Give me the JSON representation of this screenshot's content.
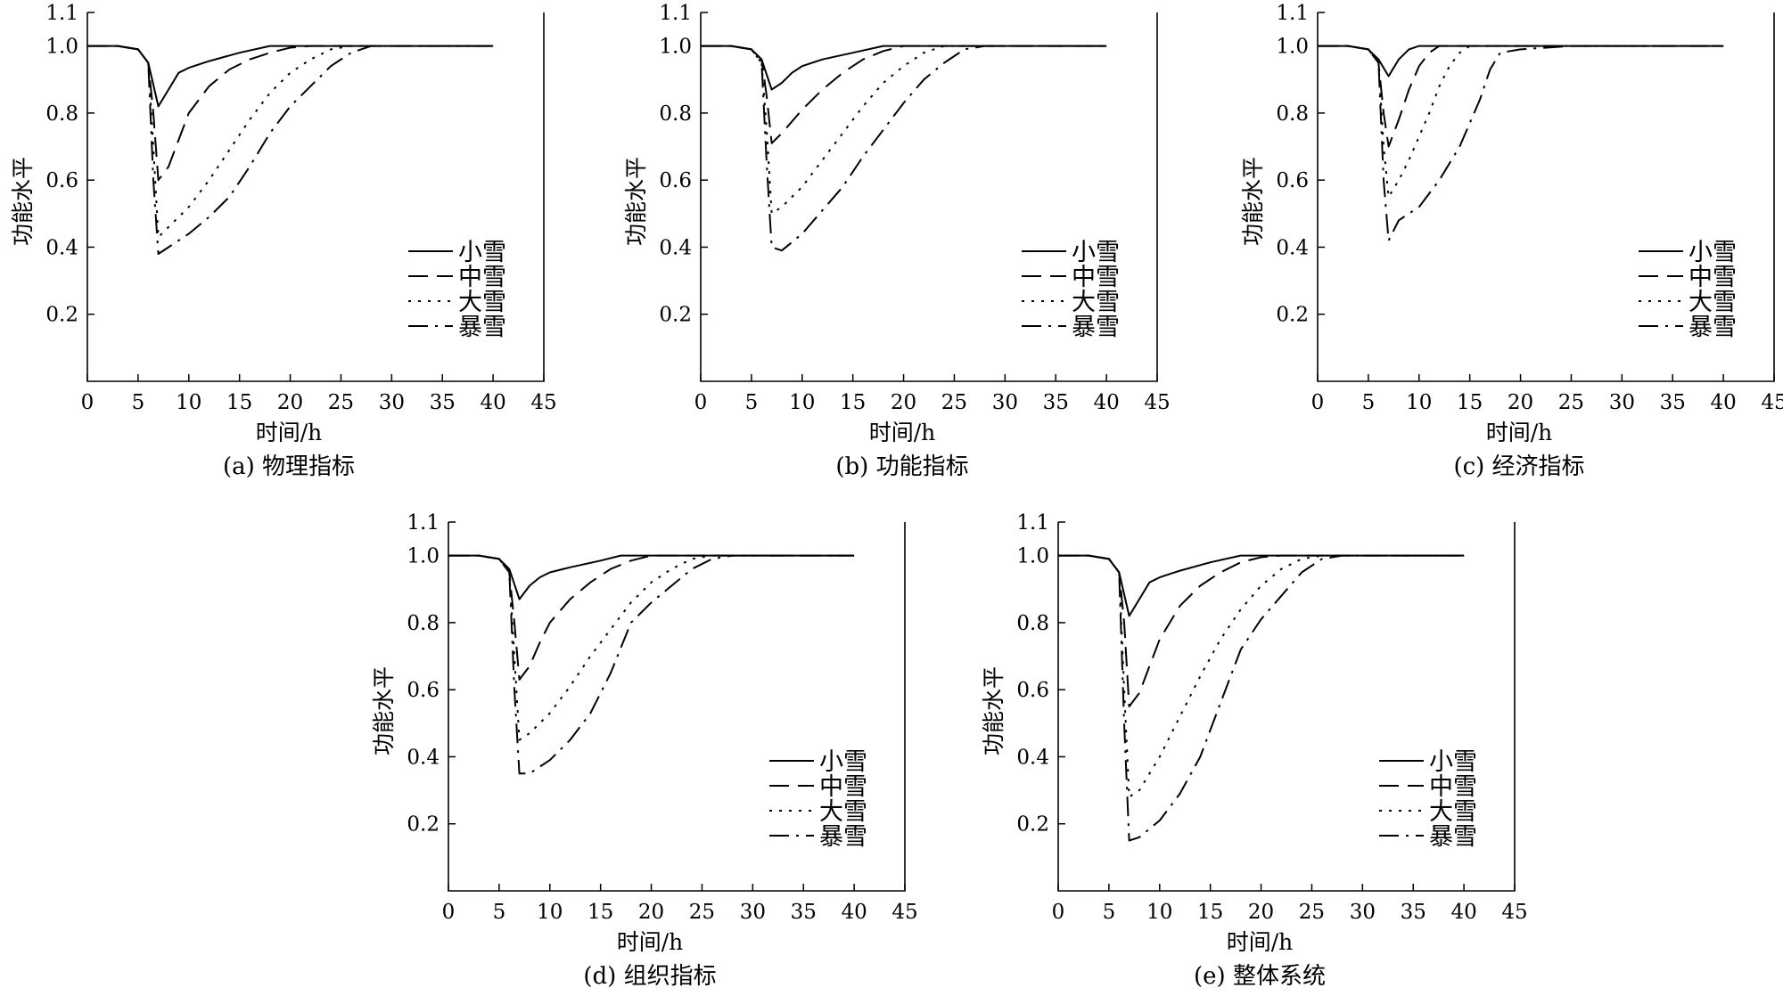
{
  "figure": {
    "x_ticks": [
      "0",
      "5",
      "10",
      "15",
      "20",
      "25",
      "30",
      "35",
      "40",
      "45"
    ],
    "y_ticks": [
      "0.2",
      "0.4",
      "0.6",
      "0.8",
      "1.0",
      "1.1"
    ],
    "legend_labels": [
      "小雪",
      "中雪",
      "大雪",
      "暴雪"
    ],
    "xlabel": "时间/h",
    "ylabel": "功能水平"
  },
  "chart_data": [
    {
      "type": "line",
      "caption": "(a) 物理指标",
      "xlabel": "时间/h",
      "ylabel": "功能水平",
      "xlim": [
        0,
        45
      ],
      "ylim": [
        0,
        1.1
      ],
      "legend_position": "center-right",
      "series": [
        {
          "name": "小雪",
          "x": [
            0,
            3,
            5,
            6,
            7,
            8,
            9,
            10,
            12,
            15,
            18,
            20,
            25,
            30,
            35,
            40
          ],
          "y": [
            1.0,
            1.0,
            0.99,
            0.95,
            0.82,
            0.87,
            0.92,
            0.935,
            0.955,
            0.98,
            1.0,
            1.0,
            1.0,
            1.0,
            1.0,
            1.0
          ]
        },
        {
          "name": "中雪",
          "x": [
            0,
            3,
            5,
            6,
            6.5,
            7,
            8,
            9,
            10,
            12,
            14,
            16,
            18,
            20,
            22,
            25,
            30,
            35,
            40
          ],
          "y": [
            1.0,
            1.0,
            0.99,
            0.95,
            0.8,
            0.6,
            0.64,
            0.72,
            0.8,
            0.88,
            0.93,
            0.96,
            0.98,
            0.995,
            1.0,
            1.0,
            1.0,
            1.0,
            1.0
          ]
        },
        {
          "name": "大雪",
          "x": [
            0,
            3,
            5,
            6,
            6.5,
            7,
            8,
            10,
            12,
            14,
            16,
            18,
            20,
            22,
            24,
            26,
            30,
            35,
            40
          ],
          "y": [
            1.0,
            1.0,
            0.99,
            0.95,
            0.7,
            0.43,
            0.46,
            0.52,
            0.6,
            0.69,
            0.78,
            0.86,
            0.92,
            0.96,
            0.99,
            1.0,
            1.0,
            1.0,
            1.0
          ]
        },
        {
          "name": "暴雪",
          "x": [
            0,
            3,
            5,
            6,
            6.5,
            7,
            8,
            10,
            12,
            14,
            16,
            18,
            20,
            22,
            24,
            26,
            28,
            30,
            35,
            40
          ],
          "y": [
            1.0,
            1.0,
            0.99,
            0.95,
            0.6,
            0.38,
            0.4,
            0.44,
            0.49,
            0.55,
            0.64,
            0.74,
            0.82,
            0.88,
            0.94,
            0.98,
            1.0,
            1.0,
            1.0,
            1.0
          ]
        }
      ]
    },
    {
      "type": "line",
      "caption": "(b) 功能指标",
      "xlabel": "时间/h",
      "ylabel": "功能水平",
      "xlim": [
        0,
        45
      ],
      "ylim": [
        0,
        1.1
      ],
      "legend_position": "center-right",
      "series": [
        {
          "name": "小雪",
          "x": [
            0,
            3,
            5,
            6,
            7,
            8,
            9,
            10,
            12,
            15,
            18,
            20,
            25,
            30,
            35,
            40
          ],
          "y": [
            1.0,
            1.0,
            0.99,
            0.96,
            0.87,
            0.89,
            0.92,
            0.94,
            0.96,
            0.98,
            1.0,
            1.0,
            1.0,
            1.0,
            1.0,
            1.0
          ]
        },
        {
          "name": "中雪",
          "x": [
            0,
            3,
            5,
            6,
            6.5,
            7,
            8,
            10,
            12,
            14,
            16,
            18,
            20,
            22,
            25,
            30,
            35,
            40
          ],
          "y": [
            1.0,
            1.0,
            0.99,
            0.96,
            0.85,
            0.71,
            0.74,
            0.81,
            0.87,
            0.92,
            0.96,
            0.985,
            1.0,
            1.0,
            1.0,
            1.0,
            1.0,
            1.0
          ]
        },
        {
          "name": "大雪",
          "x": [
            0,
            3,
            5,
            6,
            6.5,
            7,
            8,
            10,
            12,
            14,
            16,
            18,
            20,
            22,
            24,
            26,
            30,
            35,
            40
          ],
          "y": [
            1.0,
            1.0,
            0.99,
            0.95,
            0.75,
            0.5,
            0.52,
            0.58,
            0.66,
            0.74,
            0.82,
            0.89,
            0.94,
            0.98,
            1.0,
            1.0,
            1.0,
            1.0,
            1.0
          ]
        },
        {
          "name": "暴雪",
          "x": [
            0,
            3,
            5,
            6,
            6.5,
            7,
            8,
            10,
            12,
            14,
            16,
            18,
            20,
            22,
            24,
            26,
            28,
            30,
            35,
            40
          ],
          "y": [
            1.0,
            1.0,
            0.99,
            0.95,
            0.65,
            0.4,
            0.39,
            0.44,
            0.51,
            0.58,
            0.67,
            0.75,
            0.83,
            0.9,
            0.95,
            0.99,
            1.0,
            1.0,
            1.0,
            1.0
          ]
        }
      ]
    },
    {
      "type": "line",
      "caption": "(c) 经济指标",
      "xlabel": "时间/h",
      "ylabel": "功能水平",
      "xlim": [
        0,
        45
      ],
      "ylim": [
        0,
        1.1
      ],
      "legend_position": "center-right",
      "series": [
        {
          "name": "小雪",
          "x": [
            0,
            3,
            5,
            6,
            7,
            8,
            9,
            10,
            12,
            15,
            20,
            25,
            30,
            35,
            40
          ],
          "y": [
            1.0,
            1.0,
            0.99,
            0.96,
            0.91,
            0.96,
            0.99,
            1.0,
            1.0,
            1.0,
            1.0,
            1.0,
            1.0,
            1.0,
            1.0
          ]
        },
        {
          "name": "中雪",
          "x": [
            0,
            3,
            5,
            6,
            6.5,
            7,
            8,
            9,
            10,
            11,
            12,
            15,
            20,
            25,
            30,
            35,
            40
          ],
          "y": [
            1.0,
            1.0,
            0.99,
            0.95,
            0.8,
            0.7,
            0.78,
            0.87,
            0.94,
            0.98,
            1.0,
            1.0,
            1.0,
            1.0,
            1.0,
            1.0,
            1.0
          ]
        },
        {
          "name": "大雪",
          "x": [
            0,
            3,
            5,
            6,
            6.5,
            7,
            8,
            9,
            10,
            11,
            12,
            13,
            14,
            15,
            20,
            25,
            30,
            35,
            40
          ],
          "y": [
            1.0,
            1.0,
            0.99,
            0.95,
            0.7,
            0.55,
            0.6,
            0.66,
            0.73,
            0.8,
            0.88,
            0.94,
            0.98,
            1.0,
            1.0,
            1.0,
            1.0,
            1.0,
            1.0
          ]
        },
        {
          "name": "暴雪",
          "x": [
            0,
            3,
            5,
            6,
            6.5,
            7,
            8,
            10,
            12,
            14,
            16,
            17,
            18,
            20,
            25,
            27,
            30,
            35,
            40
          ],
          "y": [
            1.0,
            1.0,
            0.99,
            0.95,
            0.6,
            0.42,
            0.48,
            0.52,
            0.6,
            0.7,
            0.84,
            0.93,
            0.98,
            0.99,
            1.0,
            1.0,
            1.0,
            1.0,
            1.0
          ]
        }
      ]
    },
    {
      "type": "line",
      "caption": "(d) 组织指标",
      "xlabel": "时间/h",
      "ylabel": "功能水平",
      "xlim": [
        0,
        45
      ],
      "ylim": [
        0,
        1.1
      ],
      "legend_position": "center-right",
      "series": [
        {
          "name": "小雪",
          "x": [
            0,
            3,
            5,
            6,
            7,
            8,
            9,
            10,
            12,
            15,
            17,
            20,
            25,
            30,
            35,
            40
          ],
          "y": [
            1.0,
            1.0,
            0.99,
            0.96,
            0.87,
            0.91,
            0.935,
            0.95,
            0.965,
            0.985,
            1.0,
            1.0,
            1.0,
            1.0,
            1.0,
            1.0
          ]
        },
        {
          "name": "中雪",
          "x": [
            0,
            3,
            5,
            6,
            6.5,
            7,
            8,
            9,
            10,
            12,
            14,
            16,
            18,
            20,
            22,
            25,
            30,
            35,
            40
          ],
          "y": [
            1.0,
            1.0,
            0.99,
            0.95,
            0.8,
            0.63,
            0.67,
            0.74,
            0.8,
            0.87,
            0.92,
            0.96,
            0.985,
            1.0,
            1.0,
            1.0,
            1.0,
            1.0,
            1.0
          ]
        },
        {
          "name": "大雪",
          "x": [
            0,
            3,
            5,
            6,
            6.5,
            7,
            8,
            10,
            12,
            14,
            16,
            18,
            20,
            22,
            24,
            26,
            30,
            35,
            40
          ],
          "y": [
            1.0,
            1.0,
            0.99,
            0.95,
            0.7,
            0.45,
            0.47,
            0.53,
            0.61,
            0.7,
            0.78,
            0.86,
            0.92,
            0.96,
            0.99,
            1.0,
            1.0,
            1.0,
            1.0
          ]
        },
        {
          "name": "暴雪",
          "x": [
            0,
            3,
            5,
            6,
            6.5,
            7,
            8,
            10,
            12,
            14,
            16,
            18,
            20,
            22,
            24,
            26,
            28,
            30,
            35,
            40
          ],
          "y": [
            1.0,
            1.0,
            0.99,
            0.95,
            0.6,
            0.35,
            0.35,
            0.39,
            0.45,
            0.53,
            0.65,
            0.8,
            0.86,
            0.91,
            0.96,
            0.99,
            1.0,
            1.0,
            1.0,
            1.0
          ]
        }
      ]
    },
    {
      "type": "line",
      "caption": "(e) 整体系统",
      "xlabel": "时间/h",
      "ylabel": "功能水平",
      "xlim": [
        0,
        45
      ],
      "ylim": [
        0,
        1.1
      ],
      "legend_position": "center-right",
      "series": [
        {
          "name": "小雪",
          "x": [
            0,
            3,
            5,
            6,
            7,
            8,
            9,
            10,
            12,
            15,
            18,
            20,
            25,
            30,
            35,
            40
          ],
          "y": [
            1.0,
            1.0,
            0.99,
            0.95,
            0.82,
            0.87,
            0.92,
            0.935,
            0.955,
            0.98,
            1.0,
            1.0,
            1.0,
            1.0,
            1.0,
            1.0
          ]
        },
        {
          "name": "中雪",
          "x": [
            0,
            3,
            5,
            6,
            6.5,
            7,
            8,
            9,
            10,
            12,
            14,
            16,
            18,
            20,
            22,
            25,
            30,
            35,
            40
          ],
          "y": [
            1.0,
            1.0,
            0.99,
            0.95,
            0.8,
            0.55,
            0.59,
            0.67,
            0.75,
            0.85,
            0.91,
            0.95,
            0.98,
            0.995,
            1.0,
            1.0,
            1.0,
            1.0,
            1.0
          ]
        },
        {
          "name": "大雪",
          "x": [
            0,
            3,
            5,
            6,
            6.5,
            7,
            8,
            10,
            12,
            14,
            16,
            18,
            20,
            22,
            24,
            26,
            30,
            35,
            40
          ],
          "y": [
            1.0,
            1.0,
            0.99,
            0.95,
            0.6,
            0.28,
            0.3,
            0.4,
            0.52,
            0.64,
            0.75,
            0.84,
            0.91,
            0.96,
            0.99,
            1.0,
            1.0,
            1.0,
            1.0
          ]
        },
        {
          "name": "暴雪",
          "x": [
            0,
            3,
            5,
            6,
            6.5,
            7,
            8,
            10,
            12,
            14,
            16,
            18,
            20,
            22,
            24,
            26,
            28,
            30,
            35,
            40
          ],
          "y": [
            1.0,
            1.0,
            0.99,
            0.95,
            0.5,
            0.15,
            0.16,
            0.21,
            0.29,
            0.4,
            0.56,
            0.72,
            0.81,
            0.88,
            0.95,
            0.99,
            1.0,
            1.0,
            1.0,
            1.0
          ]
        }
      ]
    }
  ]
}
